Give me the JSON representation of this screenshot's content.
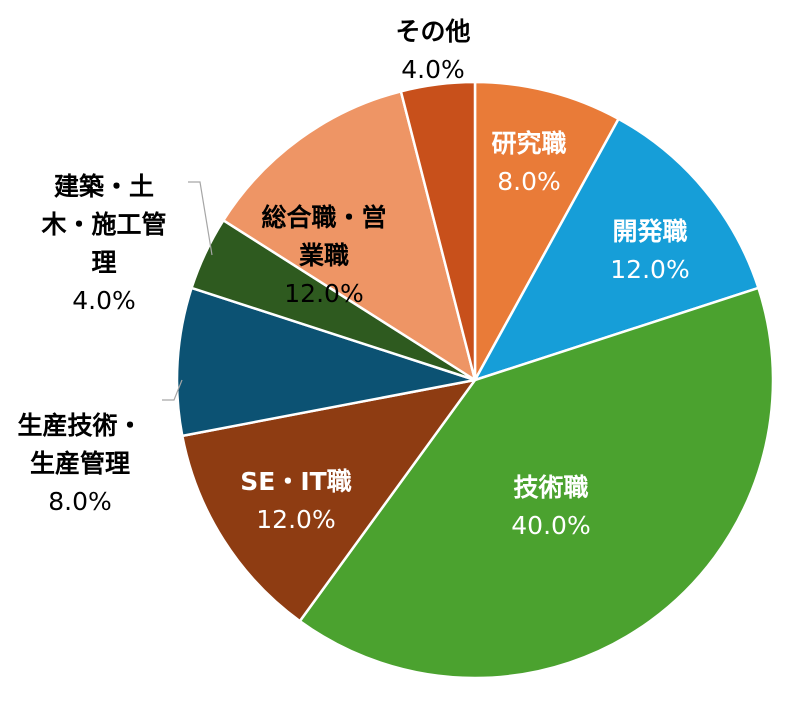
{
  "chart_data": {
    "type": "pie",
    "title": "",
    "slices": [
      {
        "label_lines": [
          "研究職"
        ],
        "percent_label": "8.0%",
        "value": 8.0,
        "color": "#E97B38",
        "text_color": "#ffffff"
      },
      {
        "label_lines": [
          "開発職"
        ],
        "percent_label": "12.0%",
        "value": 12.0,
        "color": "#169ED8",
        "text_color": "#ffffff"
      },
      {
        "label_lines": [
          "技術職"
        ],
        "percent_label": "40.0%",
        "value": 40.0,
        "color": "#4BA22F",
        "text_color": "#ffffff"
      },
      {
        "label_lines": [
          "SE・IT職"
        ],
        "percent_label": "12.0%",
        "value": 12.0,
        "color": "#8E3C12",
        "text_color": "#ffffff"
      },
      {
        "label_lines": [
          "生産技術・",
          "生産管理"
        ],
        "percent_label": "8.0%",
        "value": 8.0,
        "color": "#0C5273",
        "text_color": "#000000"
      },
      {
        "label_lines": [
          "建築・土",
          "木・施工管",
          "理"
        ],
        "percent_label": "4.0%",
        "value": 4.0,
        "color": "#2E5A1F",
        "text_color": "#000000"
      },
      {
        "label_lines": [
          "総合職・営",
          "業職"
        ],
        "percent_label": "12.0%",
        "value": 12.0,
        "color": "#EE9565",
        "text_color": "#000000"
      },
      {
        "label_lines": [
          "その他"
        ],
        "percent_label": "4.0%",
        "value": 4.0,
        "color": "#C8501B",
        "text_color": "#000000"
      }
    ]
  }
}
